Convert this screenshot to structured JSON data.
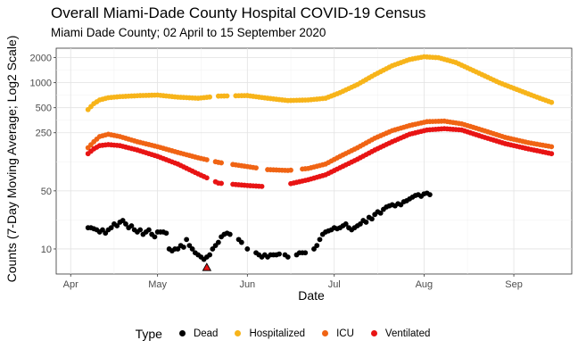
{
  "chart_data": {
    "type": "scatter",
    "title": "Overall Miami-Dade County Hospital COVID-19 Census",
    "subtitle": "Miami Dade County; 02 April to 15 September 2020",
    "xlabel": "Date",
    "ylabel": "Counts (7-Day Moving Average; Log2 Scale)",
    "y_scale": "log2",
    "xlim": [
      "2020-03-27",
      "2020-09-21"
    ],
    "ylim": [
      5,
      2600
    ],
    "x_ticks": [
      {
        "date": "2020-04-01",
        "label": "Apr"
      },
      {
        "date": "2020-05-01",
        "label": "May"
      },
      {
        "date": "2020-06-01",
        "label": "Jun"
      },
      {
        "date": "2020-07-01",
        "label": "Jul"
      },
      {
        "date": "2020-08-01",
        "label": "Aug"
      },
      {
        "date": "2020-09-01",
        "label": "Sep"
      }
    ],
    "y_ticks": [
      {
        "value": 10,
        "label": "10"
      },
      {
        "value": 50,
        "label": "50"
      },
      {
        "value": 250,
        "label": "250"
      },
      {
        "value": 500,
        "label": "500"
      },
      {
        "value": 1000,
        "label": "1000"
      },
      {
        "value": 2000,
        "label": "2000"
      }
    ],
    "grid": true,
    "legend": {
      "title": "Type",
      "position": "bottom"
    },
    "series": [
      {
        "name": "Dead",
        "color": "#000000",
        "points": [
          [
            "2020-04-07",
            18
          ],
          [
            "2020-04-08",
            18
          ],
          [
            "2020-04-09",
            17.5
          ],
          [
            "2020-04-10",
            17
          ],
          [
            "2020-04-11",
            16
          ],
          [
            "2020-04-12",
            17
          ],
          [
            "2020-04-13",
            15.5
          ],
          [
            "2020-04-14",
            17
          ],
          [
            "2020-04-15",
            18
          ],
          [
            "2020-04-16",
            20
          ],
          [
            "2020-04-17",
            19
          ],
          [
            "2020-04-18",
            21
          ],
          [
            "2020-04-19",
            22
          ],
          [
            "2020-04-20",
            20
          ],
          [
            "2020-04-21",
            18
          ],
          [
            "2020-04-22",
            19
          ],
          [
            "2020-04-23",
            17
          ],
          [
            "2020-04-24",
            16
          ],
          [
            "2020-04-25",
            17
          ],
          [
            "2020-04-26",
            15
          ],
          [
            "2020-04-27",
            16
          ],
          [
            "2020-04-28",
            17
          ],
          [
            "2020-04-29",
            15
          ],
          [
            "2020-04-30",
            14
          ],
          [
            "2020-05-01",
            16
          ],
          [
            "2020-05-02",
            16
          ],
          [
            "2020-05-03",
            16
          ],
          [
            "2020-05-04",
            15.5
          ],
          [
            "2020-05-05",
            10
          ],
          [
            "2020-05-06",
            9.5
          ],
          [
            "2020-05-07",
            10
          ],
          [
            "2020-05-08",
            10
          ],
          [
            "2020-05-09",
            11
          ],
          [
            "2020-05-10",
            10.5
          ],
          [
            "2020-05-11",
            13
          ],
          [
            "2020-05-12",
            11
          ],
          [
            "2020-05-13",
            10
          ],
          [
            "2020-05-14",
            9
          ],
          [
            "2020-05-15",
            8.5
          ],
          [
            "2020-05-16",
            8
          ],
          [
            "2020-05-17",
            7.5
          ],
          [
            "2020-05-18",
            8
          ],
          [
            "2020-05-19",
            8.5
          ],
          [
            "2020-05-20",
            10
          ],
          [
            "2020-05-21",
            11
          ],
          [
            "2020-05-22",
            12
          ],
          [
            "2020-05-23",
            14
          ],
          [
            "2020-05-24",
            15
          ],
          [
            "2020-05-25",
            15.5
          ],
          [
            "2020-05-26",
            15
          ],
          [
            "2020-05-29",
            13
          ],
          [
            "2020-05-30",
            12
          ],
          [
            "2020-06-01",
            10
          ],
          [
            "2020-06-04",
            9
          ],
          [
            "2020-06-05",
            8.5
          ],
          [
            "2020-06-06",
            8
          ],
          [
            "2020-06-07",
            8.5
          ],
          [
            "2020-06-08",
            8
          ],
          [
            "2020-06-09",
            8.5
          ],
          [
            "2020-06-10",
            8.5
          ],
          [
            "2020-06-11",
            8.5
          ],
          [
            "2020-06-12",
            8.7
          ],
          [
            "2020-06-14",
            8.5
          ],
          [
            "2020-06-15",
            8
          ],
          [
            "2020-06-18",
            8.5
          ],
          [
            "2020-06-19",
            9
          ],
          [
            "2020-06-20",
            9
          ],
          [
            "2020-06-21",
            9
          ],
          [
            "2020-06-24",
            10
          ],
          [
            "2020-06-25",
            11
          ],
          [
            "2020-06-26",
            13
          ],
          [
            "2020-06-27",
            15
          ],
          [
            "2020-06-28",
            16
          ],
          [
            "2020-06-29",
            16.5
          ],
          [
            "2020-06-30",
            17
          ],
          [
            "2020-07-01",
            18
          ],
          [
            "2020-07-02",
            17.5
          ],
          [
            "2020-07-03",
            18
          ],
          [
            "2020-07-04",
            19
          ],
          [
            "2020-07-05",
            20
          ],
          [
            "2020-07-06",
            18
          ],
          [
            "2020-07-07",
            17
          ],
          [
            "2020-07-08",
            18
          ],
          [
            "2020-07-09",
            19
          ],
          [
            "2020-07-10",
            20
          ],
          [
            "2020-07-11",
            22
          ],
          [
            "2020-07-12",
            21
          ],
          [
            "2020-07-13",
            24
          ],
          [
            "2020-07-14",
            23
          ],
          [
            "2020-07-15",
            26
          ],
          [
            "2020-07-16",
            28
          ],
          [
            "2020-07-17",
            27
          ],
          [
            "2020-07-18",
            30
          ],
          [
            "2020-07-19",
            32
          ],
          [
            "2020-07-20",
            33
          ],
          [
            "2020-07-21",
            34
          ],
          [
            "2020-07-22",
            33
          ],
          [
            "2020-07-23",
            35
          ],
          [
            "2020-07-24",
            34
          ],
          [
            "2020-07-25",
            37
          ],
          [
            "2020-07-26",
            38
          ],
          [
            "2020-07-27",
            40
          ],
          [
            "2020-07-28",
            42
          ],
          [
            "2020-07-29",
            44
          ],
          [
            "2020-07-30",
            45
          ],
          [
            "2020-07-31",
            43
          ],
          [
            "2020-08-01",
            46
          ],
          [
            "2020-08-02",
            47
          ],
          [
            "2020-08-03",
            45
          ]
        ]
      },
      {
        "name": "Hospitalized",
        "color": "#F7B41A",
        "points": []
      },
      {
        "name": "ICU",
        "color": "#F06414",
        "points": []
      },
      {
        "name": "Ventilated",
        "color": "#E81414",
        "points": []
      }
    ],
    "series_curves": {
      "Hospitalized": [
        [
          "2020-04-07",
          475
        ],
        [
          "2020-04-09",
          560
        ],
        [
          "2020-04-11",
          620
        ],
        [
          "2020-04-14",
          660
        ],
        [
          "2020-04-18",
          680
        ],
        [
          "2020-04-25",
          700
        ],
        [
          "2020-05-01",
          710
        ],
        [
          "2020-05-08",
          670
        ],
        [
          "2020-05-15",
          650
        ],
        [
          "2020-05-22",
          690
        ],
        [
          "2020-06-01",
          700
        ],
        [
          "2020-06-08",
          650
        ],
        [
          "2020-06-15",
          610
        ],
        [
          "2020-06-22",
          620
        ],
        [
          "2020-06-28",
          650
        ],
        [
          "2020-07-03",
          760
        ],
        [
          "2020-07-09",
          950
        ],
        [
          "2020-07-15",
          1250
        ],
        [
          "2020-07-21",
          1600
        ],
        [
          "2020-07-27",
          1900
        ],
        [
          "2020-08-01",
          2050
        ],
        [
          "2020-08-06",
          2000
        ],
        [
          "2020-08-12",
          1750
        ],
        [
          "2020-08-19",
          1350
        ],
        [
          "2020-08-27",
          1000
        ],
        [
          "2020-09-04",
          780
        ],
        [
          "2020-09-10",
          650
        ],
        [
          "2020-09-14",
          580
        ]
      ],
      "ICU": [
        [
          "2020-04-07",
          165
        ],
        [
          "2020-04-09",
          195
        ],
        [
          "2020-04-11",
          225
        ],
        [
          "2020-04-14",
          240
        ],
        [
          "2020-04-18",
          225
        ],
        [
          "2020-04-24",
          195
        ],
        [
          "2020-05-01",
          170
        ],
        [
          "2020-05-08",
          145
        ],
        [
          "2020-05-15",
          125
        ],
        [
          "2020-05-22",
          110
        ],
        [
          "2020-06-01",
          98
        ],
        [
          "2020-06-08",
          90
        ],
        [
          "2020-06-15",
          88
        ],
        [
          "2020-06-22",
          93
        ],
        [
          "2020-06-28",
          105
        ],
        [
          "2020-07-03",
          130
        ],
        [
          "2020-07-09",
          165
        ],
        [
          "2020-07-15",
          215
        ],
        [
          "2020-07-21",
          265
        ],
        [
          "2020-07-27",
          305
        ],
        [
          "2020-08-02",
          340
        ],
        [
          "2020-08-08",
          345
        ],
        [
          "2020-08-14",
          320
        ],
        [
          "2020-08-21",
          270
        ],
        [
          "2020-08-29",
          220
        ],
        [
          "2020-09-06",
          190
        ],
        [
          "2020-09-14",
          170
        ]
      ],
      "Ventilated": [
        [
          "2020-04-07",
          140
        ],
        [
          "2020-04-09",
          160
        ],
        [
          "2020-04-11",
          175
        ],
        [
          "2020-04-14",
          180
        ],
        [
          "2020-04-18",
          175
        ],
        [
          "2020-04-24",
          155
        ],
        [
          "2020-05-01",
          130
        ],
        [
          "2020-05-08",
          105
        ],
        [
          "2020-05-15",
          80
        ],
        [
          "2020-05-22",
          62
        ],
        [
          "2020-06-01",
          58
        ],
        [
          "2020-06-08",
          56
        ],
        [
          "2020-06-15",
          60
        ],
        [
          "2020-06-22",
          68
        ],
        [
          "2020-06-28",
          78
        ],
        [
          "2020-07-03",
          95
        ],
        [
          "2020-07-09",
          120
        ],
        [
          "2020-07-15",
          155
        ],
        [
          "2020-07-21",
          195
        ],
        [
          "2020-07-27",
          240
        ],
        [
          "2020-08-02",
          270
        ],
        [
          "2020-08-08",
          280
        ],
        [
          "2020-08-14",
          270
        ],
        [
          "2020-08-21",
          225
        ],
        [
          "2020-08-29",
          185
        ],
        [
          "2020-09-06",
          160
        ],
        [
          "2020-09-14",
          140
        ]
      ]
    },
    "series_gaps": {
      "Hospitalized": [
        [
          "2020-05-20",
          "2020-05-21"
        ],
        [
          "2020-05-26",
          "2020-05-27"
        ]
      ],
      "ICU": [
        [
          "2020-05-19",
          "2020-05-20"
        ],
        [
          "2020-05-24",
          "2020-05-26"
        ],
        [
          "2020-06-05",
          "2020-06-07"
        ],
        [
          "2020-06-17",
          "2020-06-19"
        ]
      ],
      "Ventilated": [
        [
          "2020-05-19",
          "2020-05-20"
        ],
        [
          "2020-05-24",
          "2020-05-26"
        ],
        [
          "2020-06-07",
          "2020-06-15"
        ]
      ]
    },
    "annotation_marker": {
      "shape": "triangle",
      "date": "2020-05-18",
      "value": 6,
      "fill": "#E81414",
      "stroke": "#000000"
    }
  }
}
